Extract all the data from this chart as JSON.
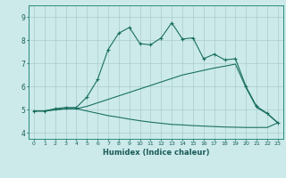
{
  "title": "",
  "xlabel": "Humidex (Indice chaleur)",
  "background_color": "#cceaea",
  "grid_color": "#aacccc",
  "line_color": "#1a7060",
  "xlim": [
    -0.5,
    23.5
  ],
  "ylim": [
    3.75,
    9.5
  ],
  "yticks": [
    4,
    5,
    6,
    7,
    8,
    9
  ],
  "xticks": [
    0,
    1,
    2,
    3,
    4,
    5,
    6,
    7,
    8,
    9,
    10,
    11,
    12,
    13,
    14,
    15,
    16,
    17,
    18,
    19,
    20,
    21,
    22,
    23
  ],
  "line1_x": [
    0,
    1,
    2,
    3,
    4,
    5,
    6,
    7,
    8,
    9,
    10,
    11,
    12,
    13,
    14,
    15,
    16,
    17,
    18,
    19,
    20,
    21,
    22,
    23
  ],
  "line1_y": [
    4.95,
    4.95,
    5.05,
    5.1,
    5.1,
    5.55,
    6.3,
    7.6,
    8.3,
    8.55,
    7.85,
    7.8,
    8.1,
    8.75,
    8.05,
    8.1,
    7.2,
    7.4,
    7.15,
    7.2,
    6.0,
    5.15,
    4.85,
    4.45
  ],
  "line2_x": [
    0,
    1,
    2,
    3,
    4,
    5,
    6,
    7,
    8,
    9,
    10,
    11,
    12,
    13,
    14,
    15,
    16,
    17,
    18,
    19,
    20,
    21,
    22,
    23
  ],
  "line2_y": [
    4.95,
    4.95,
    5.0,
    5.05,
    5.05,
    5.15,
    5.3,
    5.45,
    5.6,
    5.75,
    5.9,
    6.05,
    6.2,
    6.35,
    6.5,
    6.6,
    6.7,
    6.8,
    6.88,
    6.97,
    5.95,
    5.1,
    4.83,
    4.43
  ],
  "line3_x": [
    0,
    1,
    2,
    3,
    4,
    5,
    6,
    7,
    8,
    9,
    10,
    11,
    12,
    13,
    14,
    15,
    16,
    17,
    18,
    19,
    20,
    21,
    22,
    23
  ],
  "line3_y": [
    4.95,
    4.95,
    5.0,
    5.05,
    5.05,
    4.95,
    4.85,
    4.75,
    4.68,
    4.6,
    4.53,
    4.47,
    4.42,
    4.37,
    4.35,
    4.32,
    4.3,
    4.28,
    4.26,
    4.25,
    4.24,
    4.24,
    4.24,
    4.44
  ]
}
